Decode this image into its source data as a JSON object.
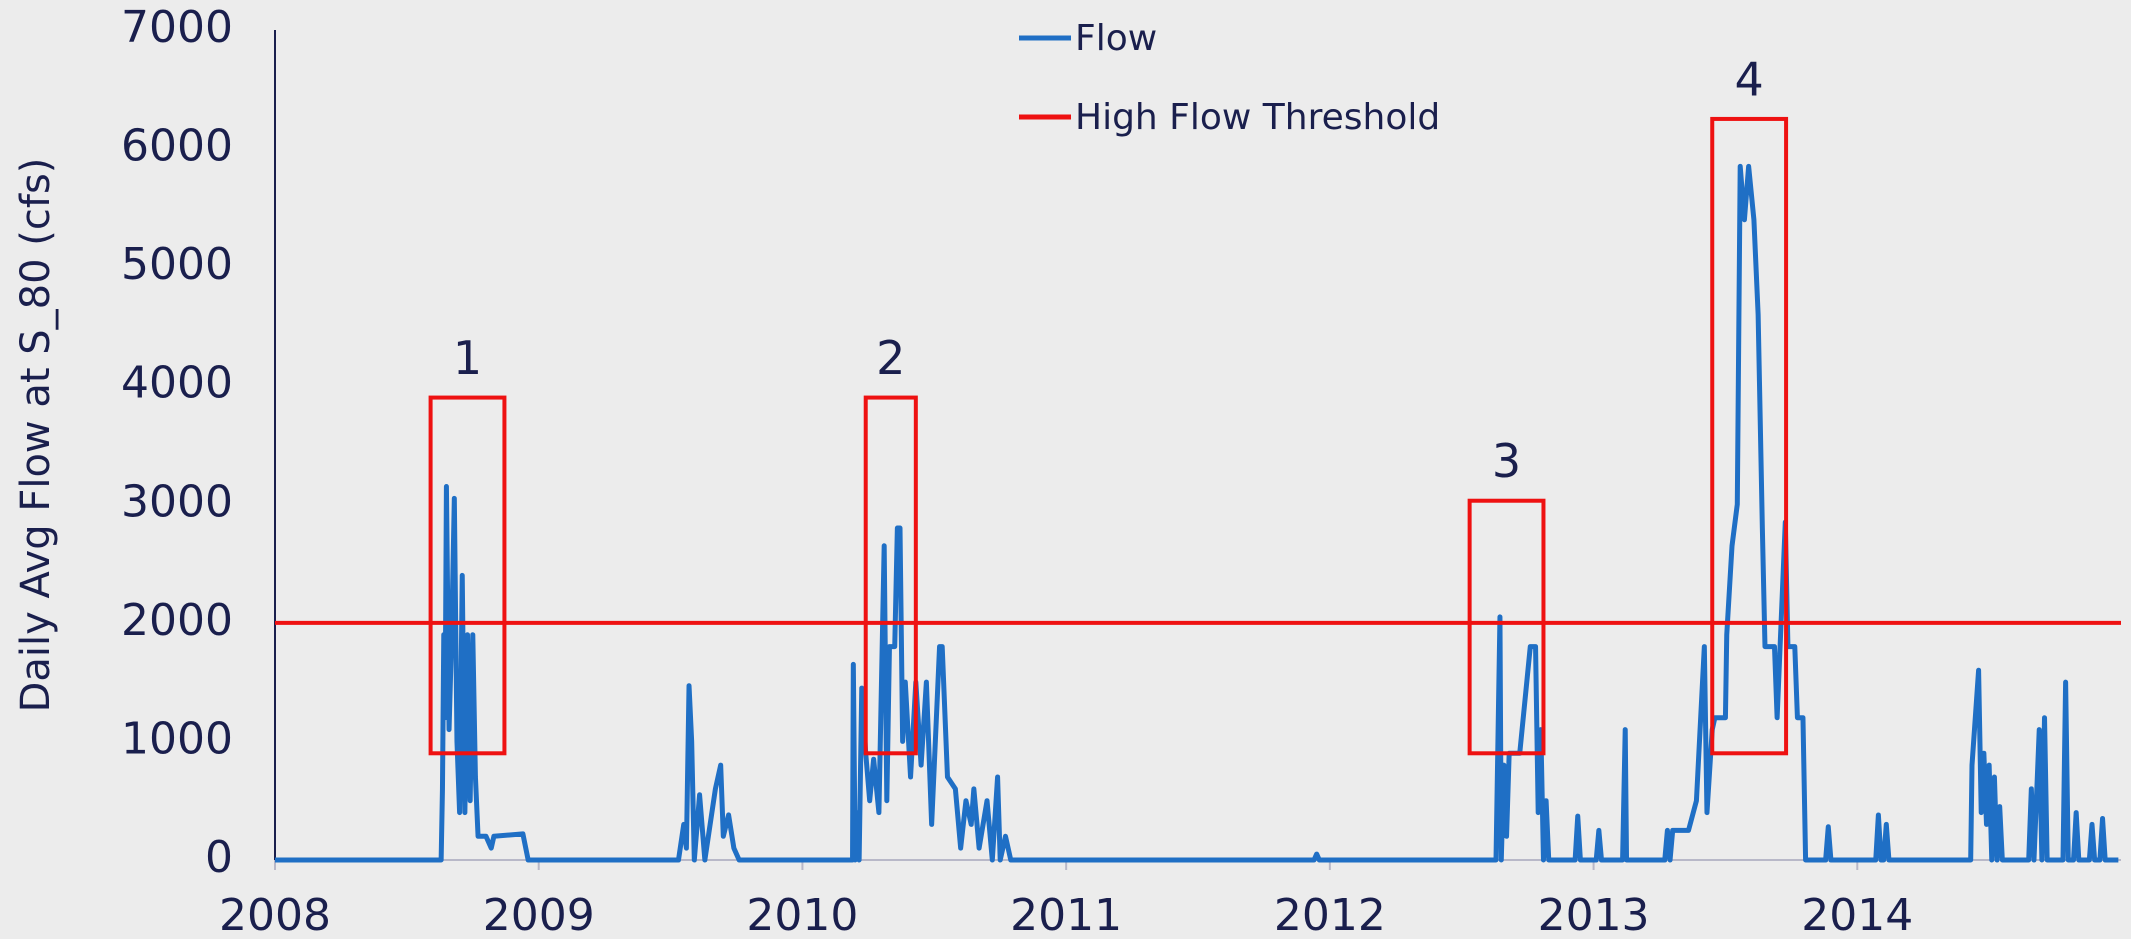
{
  "chart_data": {
    "type": "line",
    "ylabel": "Daily Avg Flow at S_80 (cfs)",
    "xlim": [
      2008,
      2015
    ],
    "xticks": [
      2008,
      2009,
      2010,
      2011,
      2012,
      2013,
      2014
    ],
    "ylim": [
      0,
      7000
    ],
    "yticks": [
      0,
      1000,
      2000,
      3000,
      4000,
      5000,
      6000,
      7000
    ],
    "grid": false,
    "legend": "top",
    "series": [
      {
        "name": "Flow",
        "color": "#1f6fc5",
        "x": [
          2008,
          2008.63,
          2008.635,
          2008.64,
          2008.645,
          2008.65,
          2008.66,
          2008.67,
          2008.68,
          2008.69,
          2008.7,
          2008.71,
          2008.72,
          2008.73,
          2008.74,
          2008.75,
          2008.76,
          2008.77,
          2008.8,
          2008.82,
          2008.83,
          2008.94,
          2008.96,
          2009.53,
          2009.55,
          2009.56,
          2009.57,
          2009.58,
          2009.59,
          2009.61,
          2009.63,
          2009.65,
          2009.67,
          2009.69,
          2009.7,
          2009.72,
          2009.74,
          2009.76,
          2010.19,
          2010.193,
          2010.2,
          2010.21,
          2010.215,
          2010.225,
          2010.24,
          2010.255,
          2010.27,
          2010.29,
          2010.31,
          2010.32,
          2010.33,
          2010.35,
          2010.36,
          2010.37,
          2010.38,
          2010.39,
          2010.41,
          2010.43,
          2010.45,
          2010.47,
          2010.49,
          2010.52,
          2010.53,
          2010.55,
          2010.58,
          2010.6,
          2010.62,
          2010.64,
          2010.65,
          2010.67,
          2010.7,
          2010.72,
          2010.74,
          2010.75,
          2010.77,
          2010.79,
          2011.94,
          2011.95,
          2011.96,
          2012.63,
          2012.645,
          2012.65,
          2012.66,
          2012.67,
          2012.68,
          2012.72,
          2012.76,
          2012.78,
          2012.79,
          2012.8,
          2012.81,
          2012.82,
          2012.83,
          2012.93,
          2012.94,
          2012.95,
          2013.01,
          2013.02,
          2013.03,
          2013.11,
          2013.12,
          2013.125,
          2013.27,
          2013.28,
          2013.29,
          2013.3,
          2013.36,
          2013.39,
          2013.42,
          2013.43,
          2013.45,
          2013.46,
          2013.5,
          2013.505,
          2013.525,
          2013.545,
          2013.556,
          2013.572,
          2013.588,
          2013.608,
          2013.624,
          2013.64,
          2013.65,
          2013.686,
          2013.696,
          2013.727,
          2013.737,
          2013.763,
          2013.773,
          2013.794,
          2013.804,
          2013.88,
          2013.89,
          2013.9,
          2014.07,
          2014.08,
          2014.09,
          2014.1,
          2014.11,
          2014.12,
          2014.43,
          2014.435,
          2014.46,
          2014.47,
          2014.48,
          2014.49,
          2014.5,
          2014.51,
          2014.52,
          2014.53,
          2014.54,
          2014.55,
          2014.65,
          2014.66,
          2014.67,
          2014.69,
          2014.7,
          2014.71,
          2014.72,
          2014.78,
          2014.79,
          2014.8,
          2014.82,
          2014.83,
          2014.84,
          2014.88,
          2014.89,
          2014.9,
          2014.92,
          2014.93,
          2014.94,
          2014.99
        ],
        "values": [
          0,
          0,
          600,
          1900,
          1200,
          3150,
          1100,
          1900,
          3050,
          1000,
          400,
          2400,
          400,
          1900,
          500,
          1900,
          700,
          200,
          200,
          100,
          200,
          220,
          0,
          0,
          300,
          100,
          1470,
          1000,
          0,
          550,
          0,
          300,
          600,
          800,
          200,
          380,
          100,
          0,
          0,
          1650,
          0,
          400,
          0,
          1450,
          900,
          500,
          850,
          400,
          2650,
          500,
          1800,
          1800,
          2800,
          2800,
          1000,
          1500,
          700,
          1500,
          800,
          1500,
          300,
          1800,
          1800,
          700,
          600,
          100,
          500,
          300,
          600,
          100,
          500,
          0,
          700,
          0,
          200,
          0,
          0,
          50,
          0,
          0,
          2050,
          0,
          800,
          200,
          900,
          900,
          1800,
          1800,
          400,
          1100,
          0,
          500,
          0,
          0,
          370,
          0,
          0,
          250,
          0,
          0,
          1100,
          0,
          0,
          250,
          0,
          250,
          250,
          500,
          1800,
          400,
          1100,
          1200,
          1200,
          1900,
          2650,
          3000,
          5850,
          5400,
          5850,
          5400,
          4600,
          2800,
          1800,
          1800,
          1200,
          2850,
          1800,
          1800,
          1200,
          1200,
          0,
          0,
          280,
          0,
          0,
          380,
          0,
          0,
          300,
          0,
          0,
          800,
          1600,
          400,
          900,
          300,
          800,
          0,
          700,
          0,
          450,
          0,
          0,
          600,
          0,
          1100,
          0,
          1200,
          0,
          0,
          1500,
          0,
          0,
          400,
          0,
          0,
          300,
          0,
          0,
          350,
          0,
          0
        ]
      },
      {
        "name": "High Flow Threshold",
        "color": "#ee1111",
        "x": [
          2008,
          2015
        ],
        "values": [
          2000,
          2000
        ]
      }
    ],
    "annotations": [
      {
        "label": "1",
        "color": "#ee1111",
        "x": [
          2008.59,
          2008.87
        ],
        "y": [
          900,
          3900
        ]
      },
      {
        "label": "2",
        "color": "#ee1111",
        "x": [
          2010.24,
          2010.43
        ],
        "y": [
          900,
          3900
        ]
      },
      {
        "label": "3",
        "color": "#ee1111",
        "x": [
          2012.53,
          2012.81
        ],
        "y": [
          900,
          3030
        ]
      },
      {
        "label": "4",
        "color": "#ee1111",
        "x": [
          2013.45,
          2013.73
        ],
        "y": [
          900,
          6250
        ]
      }
    ]
  }
}
